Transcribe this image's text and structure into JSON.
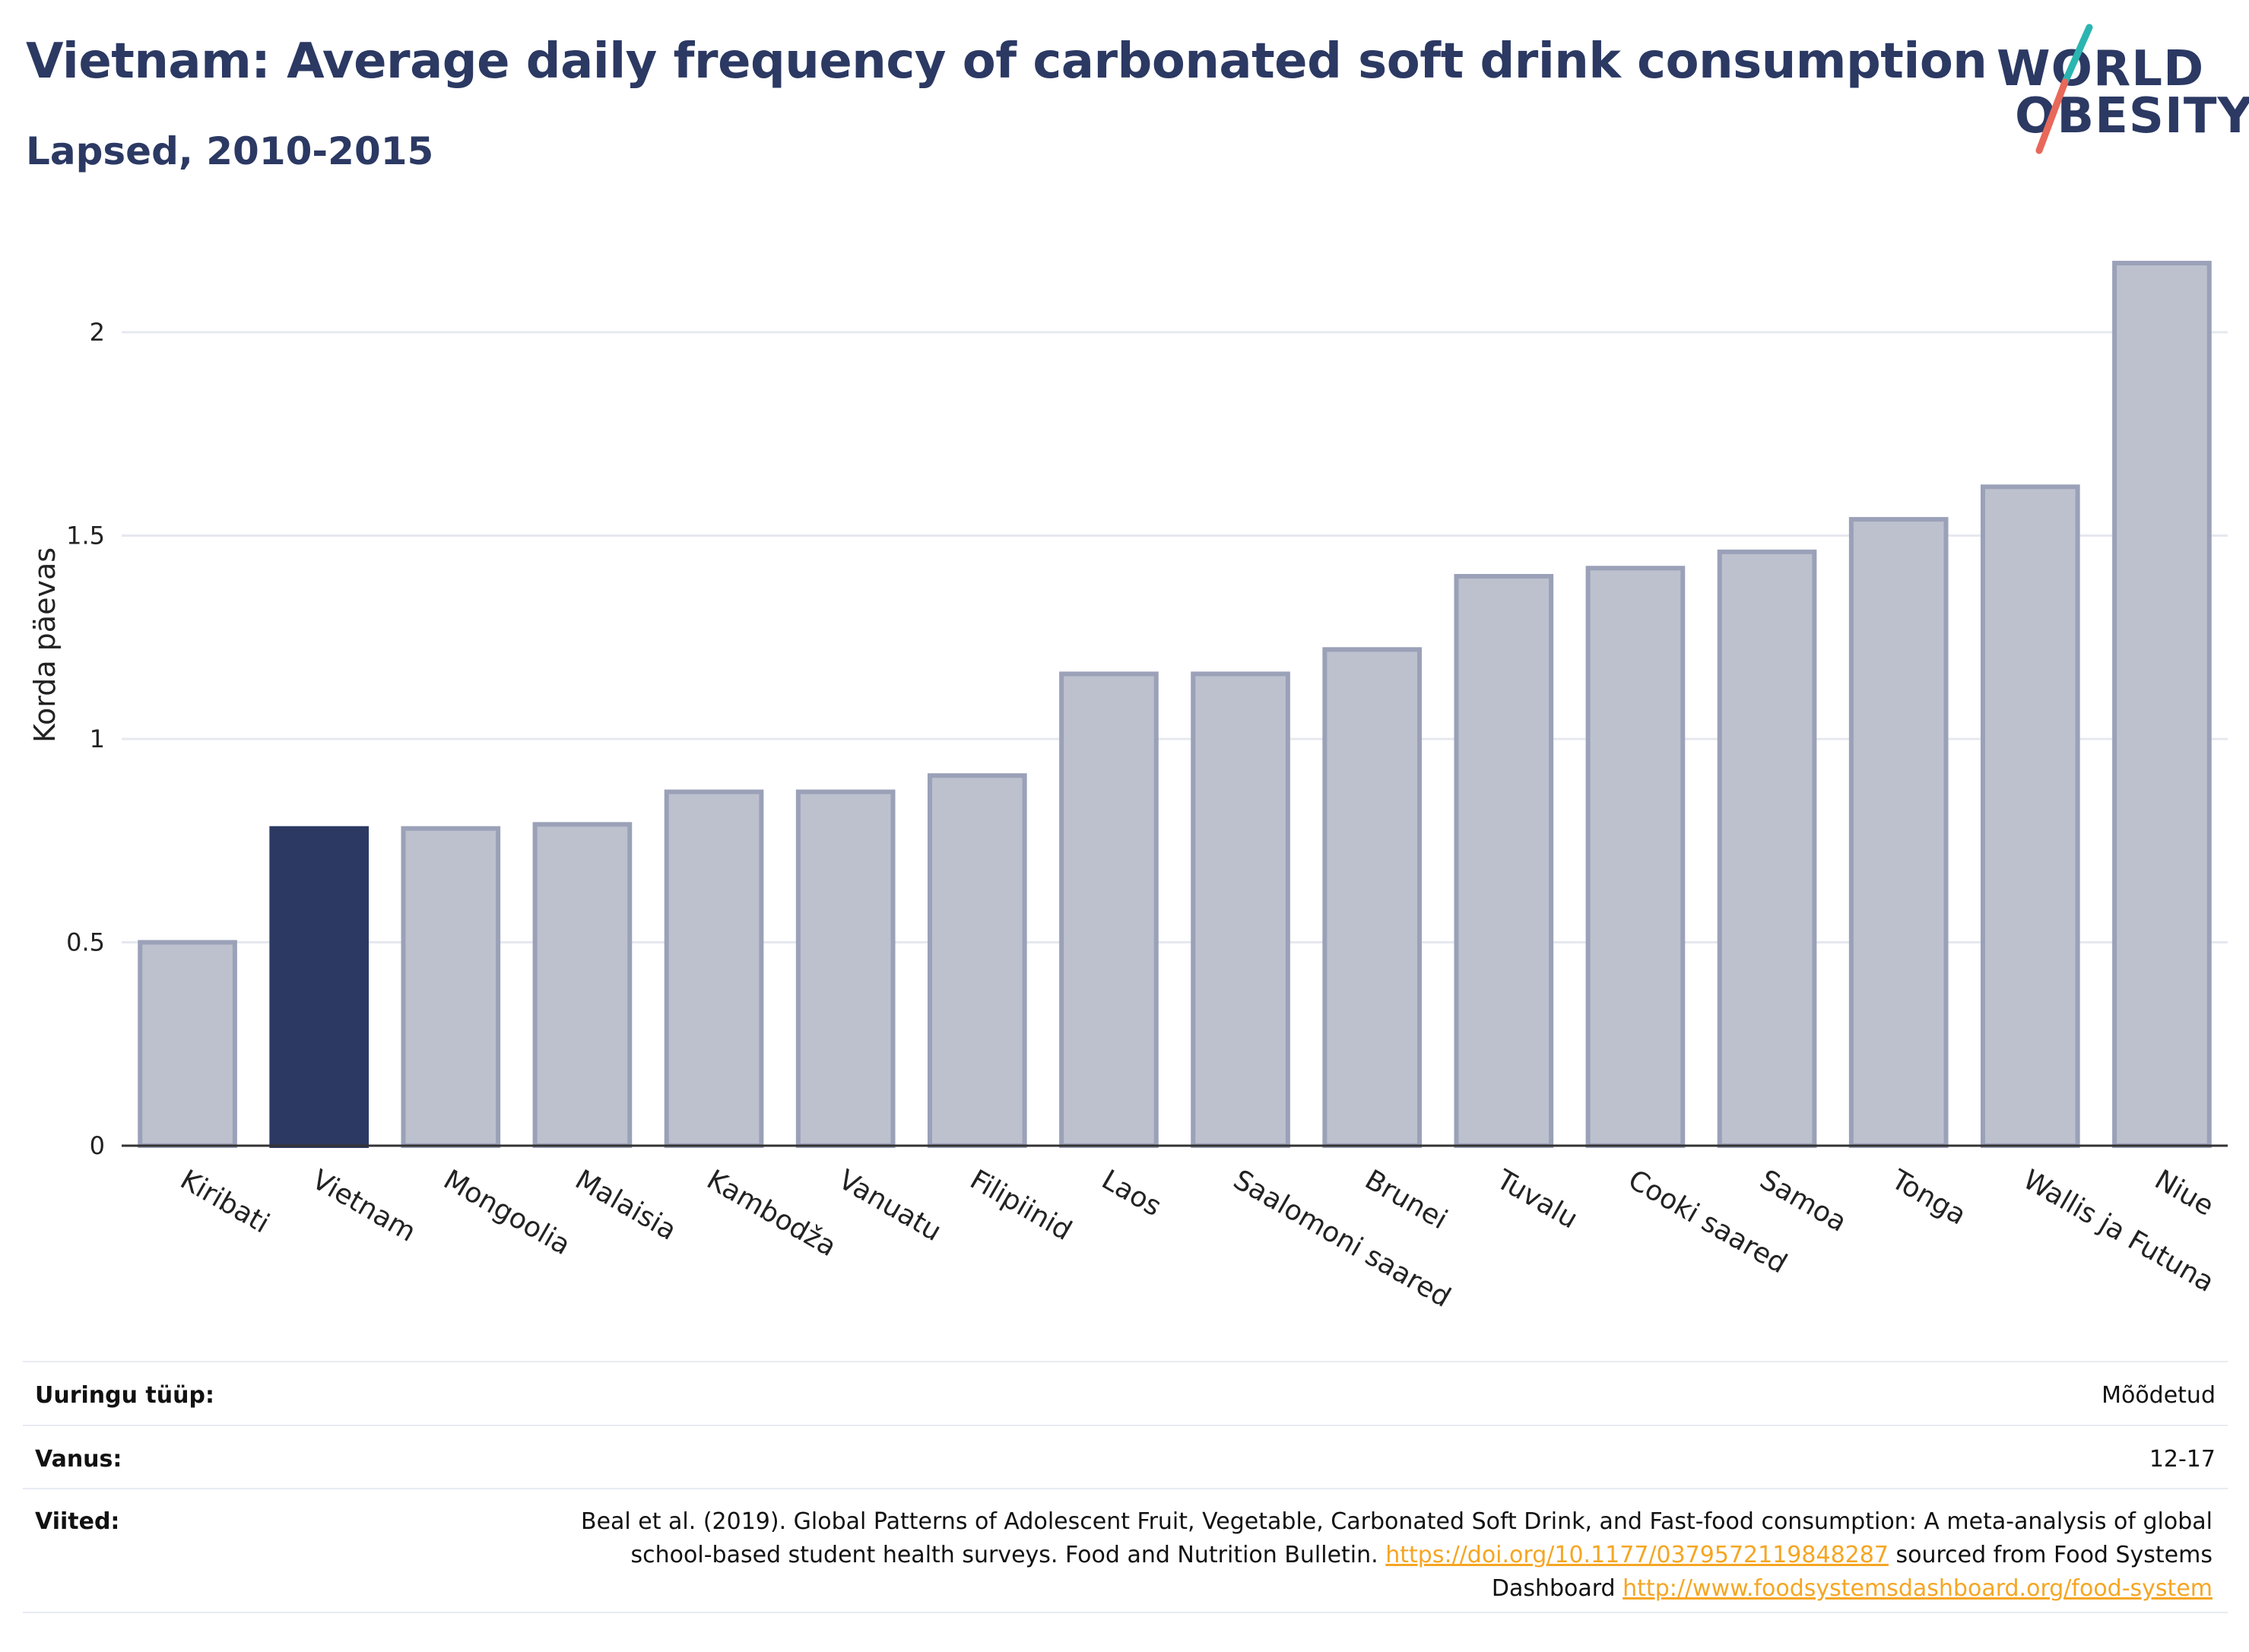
{
  "header": {
    "title": "Vietnam: Average daily frequency of carbonated soft drink consumption",
    "subtitle": "Lapsed, 2010-2015"
  },
  "logo": {
    "line1": "WORLD",
    "line2": "OBESITY",
    "slash_colors": [
      "#2bb5b0",
      "#e8685a"
    ]
  },
  "colors": {
    "highlight": "#2b3963",
    "bar": "#bdc1ce",
    "bar_border": "#9aa1b8",
    "grid": "#e6e8ef",
    "link": "#f5a623"
  },
  "chart_data": {
    "type": "bar",
    "ylabel": "Korda päevas",
    "xlabel": "",
    "ylim": [
      0,
      2.2
    ],
    "yticks": [
      0,
      0.5,
      1,
      1.5,
      2
    ],
    "ytick_labels": [
      "0",
      "0.5",
      "1",
      "1.5",
      "2"
    ],
    "grid": true,
    "highlight": "Vietnam",
    "categories": [
      "Kiribati",
      "Vietnam",
      "Mongoolia",
      "Malaisia",
      "Kambodža",
      "Vanuatu",
      "Filipiinid",
      "Laos",
      "Saalomoni saared",
      "Brunei",
      "Tuvalu",
      "Cooki saared",
      "Samoa",
      "Tonga",
      "Wallis ja Futuna",
      "Niue"
    ],
    "values": [
      0.5,
      0.78,
      0.78,
      0.79,
      0.87,
      0.87,
      0.91,
      1.16,
      1.16,
      1.22,
      1.4,
      1.42,
      1.46,
      1.54,
      1.62,
      2.17
    ]
  },
  "meta": {
    "survey_type_label": "Uuringu tüüp:",
    "survey_type_value": "Mõõdetud",
    "age_label": "Vanus:",
    "age_value": "12-17",
    "refs_label": "Viited:",
    "refs_text1": "Beal et al. (2019). Global Patterns of Adolescent Fruit, Vegetable, Carbonated Soft Drink, and Fast-food consumption: A meta-analysis of global school-based student health surveys. Food and Nutrition Bulletin.",
    "refs_link1": "https://doi.org/10.1177/0379572119848287",
    "refs_text2": "sourced from Food Systems Dashboard",
    "refs_link2": "http://www.foodsystemsdashboard.org/food-system"
  }
}
